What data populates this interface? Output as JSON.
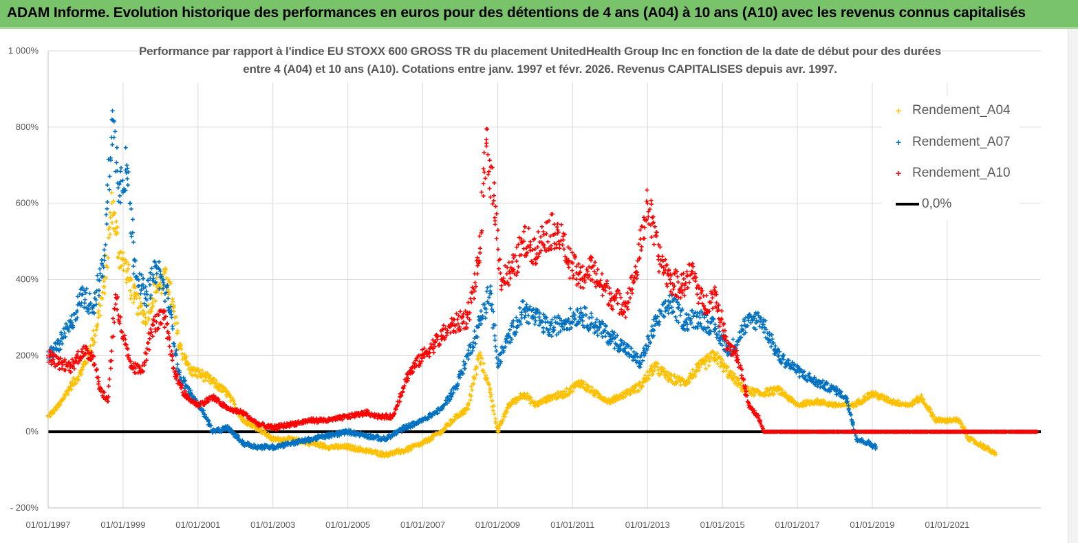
{
  "header": {
    "title": "ADAM Informe. Evolution historique des performances en euros pour des détentions de 4 ans (A04) à 10 ans (A10) avec les revenus connus capitalisés"
  },
  "colors": {
    "header_bg": "#79c36b",
    "a04": "#ffc000",
    "a07": "#0070c0",
    "a10": "#ff0000",
    "zero": "#000000",
    "grid": "#d9d9d9",
    "text": "#595959"
  },
  "chart_data": {
    "type": "scatter",
    "title_line1": "Performance par rapport à l'indice EU STOXX 600 GROSS TR  du placement UnitedHealth Group Inc en fonction de la date de début pour des durées",
    "title_line2": "entre 4 (A04) et 10 ans (A10). Cotations entre janv. 1997 et févr. 2026. Revenus CAPITALISES depuis avr. 1997.",
    "xlabel": "",
    "ylabel": "",
    "xlim": [
      1997.0,
      2023.5
    ],
    "ylim": [
      -200,
      1000
    ],
    "y_ticks": [
      -200,
      0,
      200,
      400,
      600,
      800,
      1000
    ],
    "y_tick_labels": [
      "- 200%",
      "0%",
      "200%",
      "400%",
      "600%",
      "800%",
      "1 000%"
    ],
    "x_ticks": [
      1997,
      1999,
      2001,
      2003,
      2005,
      2007,
      2009,
      2011,
      2013,
      2015,
      2017,
      2019,
      2021
    ],
    "x_tick_labels": [
      "01/01/1997",
      "01/01/1999",
      "01/01/2001",
      "01/01/2003",
      "01/01/2005",
      "01/01/2007",
      "01/01/2009",
      "01/01/2011",
      "01/01/2013",
      "01/01/2015",
      "01/01/2017",
      "01/01/2019",
      "01/01/2021"
    ],
    "grid": true,
    "legend_position": "top-right",
    "marker": "+",
    "series": [
      {
        "name": "Rendement_A04",
        "color": "#ffc000",
        "x": [
          1997.0,
          1997.3,
          1997.6,
          1997.9,
          1998.2,
          1998.5,
          1998.7,
          1998.9,
          1999.1,
          1999.3,
          1999.6,
          1999.9,
          2000.2,
          2000.5,
          2000.8,
          2001.1,
          2001.4,
          2001.8,
          2002.2,
          2002.6,
          2003.0,
          2003.5,
          2004.0,
          2004.5,
          2005.0,
          2005.5,
          2006.0,
          2006.5,
          2007.0,
          2007.5,
          2007.9,
          2008.2,
          2008.5,
          2008.8,
          2009.0,
          2009.3,
          2009.7,
          2010.0,
          2010.4,
          2010.8,
          2011.2,
          2011.6,
          2012.0,
          2012.4,
          2012.8,
          2013.2,
          2013.6,
          2014.0,
          2014.4,
          2014.8,
          2015.2,
          2015.6,
          2016.0,
          2016.5,
          2017.0,
          2017.5,
          2018.0,
          2018.5,
          2019.0,
          2019.5,
          2020.0,
          2020.3,
          2020.7,
          2021.0,
          2021.3,
          2021.6,
          2022.0,
          2022.3
        ],
        "values": [
          40,
          70,
          120,
          160,
          240,
          380,
          600,
          470,
          420,
          350,
          300,
          380,
          400,
          230,
          160,
          150,
          130,
          100,
          30,
          10,
          -20,
          -20,
          -30,
          -40,
          -40,
          -50,
          -60,
          -50,
          -30,
          0,
          40,
          60,
          200,
          110,
          0,
          70,
          100,
          70,
          90,
          100,
          130,
          100,
          80,
          100,
          120,
          170,
          140,
          130,
          170,
          200,
          150,
          110,
          100,
          110,
          70,
          80,
          70,
          70,
          100,
          80,
          70,
          90,
          30,
          30,
          30,
          -20,
          -40,
          -60
        ]
      },
      {
        "name": "Rendement_A07",
        "color": "#0070c0",
        "x": [
          1997.0,
          1997.3,
          1997.6,
          1997.9,
          1998.2,
          1998.5,
          1998.7,
          1998.9,
          1999.1,
          1999.3,
          1999.6,
          1999.9,
          2000.2,
          2000.5,
          2000.8,
          2001.1,
          2001.4,
          2001.8,
          2002.2,
          2002.6,
          2003.0,
          2003.5,
          2004.0,
          2004.5,
          2005.0,
          2005.5,
          2006.0,
          2006.5,
          2007.0,
          2007.5,
          2007.9,
          2008.2,
          2008.5,
          2008.8,
          2009.0,
          2009.3,
          2009.7,
          2010.0,
          2010.4,
          2010.8,
          2011.2,
          2011.6,
          2012.0,
          2012.4,
          2012.8,
          2013.2,
          2013.6,
          2014.0,
          2014.4,
          2014.8,
          2015.2,
          2015.6,
          2016.0,
          2016.5,
          2017.0,
          2017.5,
          2018.0,
          2018.3,
          2018.6,
          2018.9,
          2019.1
        ],
        "values": [
          200,
          230,
          280,
          360,
          330,
          450,
          820,
          650,
          700,
          450,
          350,
          430,
          350,
          150,
          100,
          60,
          0,
          10,
          -30,
          -40,
          -40,
          -30,
          -20,
          -10,
          0,
          -10,
          -20,
          10,
          30,
          60,
          120,
          200,
          280,
          370,
          180,
          250,
          320,
          300,
          270,
          290,
          310,
          280,
          250,
          220,
          180,
          280,
          340,
          290,
          300,
          270,
          210,
          280,
          300,
          200,
          160,
          130,
          110,
          90,
          -20,
          -30,
          -40
        ]
      },
      {
        "name": "Rendement_A10",
        "color": "#ff0000",
        "x": [
          1997.0,
          1997.3,
          1997.6,
          1997.9,
          1998.2,
          1998.4,
          1998.6,
          1998.8,
          1999.0,
          1999.2,
          1999.5,
          1999.8,
          2000.1,
          2000.4,
          2000.7,
          2001.0,
          2001.4,
          2001.8,
          2002.2,
          2002.6,
          2003.0,
          2003.5,
          2004.0,
          2004.5,
          2005.0,
          2005.5,
          2005.8,
          2006.2,
          2006.6,
          2007.0,
          2007.5,
          2007.8,
          2008.2,
          2008.5,
          2008.7,
          2008.9,
          2009.1,
          2009.4,
          2009.7,
          2010.0,
          2010.3,
          2010.6,
          2010.9,
          2011.2,
          2011.5,
          2011.8,
          2012.1,
          2012.4,
          2012.7,
          2013.0,
          2013.3,
          2013.6,
          2013.9,
          2014.2,
          2014.5,
          2014.8,
          2015.1,
          2015.4,
          2015.7,
          2016.0,
          2016.1,
          2017.0,
          2018.0,
          2019.0,
          2020.0,
          2021.0,
          2022.0,
          2023.0,
          2023.4
        ],
        "values": [
          200,
          180,
          170,
          210,
          200,
          110,
          80,
          360,
          250,
          170,
          160,
          280,
          300,
          150,
          90,
          70,
          90,
          60,
          50,
          20,
          10,
          20,
          30,
          30,
          40,
          50,
          40,
          40,
          150,
          200,
          250,
          280,
          300,
          450,
          750,
          620,
          400,
          420,
          500,
          480,
          520,
          530,
          450,
          400,
          430,
          380,
          350,
          330,
          420,
          600,
          460,
          400,
          380,
          420,
          330,
          360,
          240,
          200,
          70,
          30,
          0,
          0,
          0,
          0,
          0,
          0,
          0,
          0,
          0
        ]
      },
      {
        "name": "0,0%",
        "color": "#000000",
        "x": [
          1997.0,
          2023.5
        ],
        "values": [
          0,
          0
        ]
      }
    ]
  }
}
